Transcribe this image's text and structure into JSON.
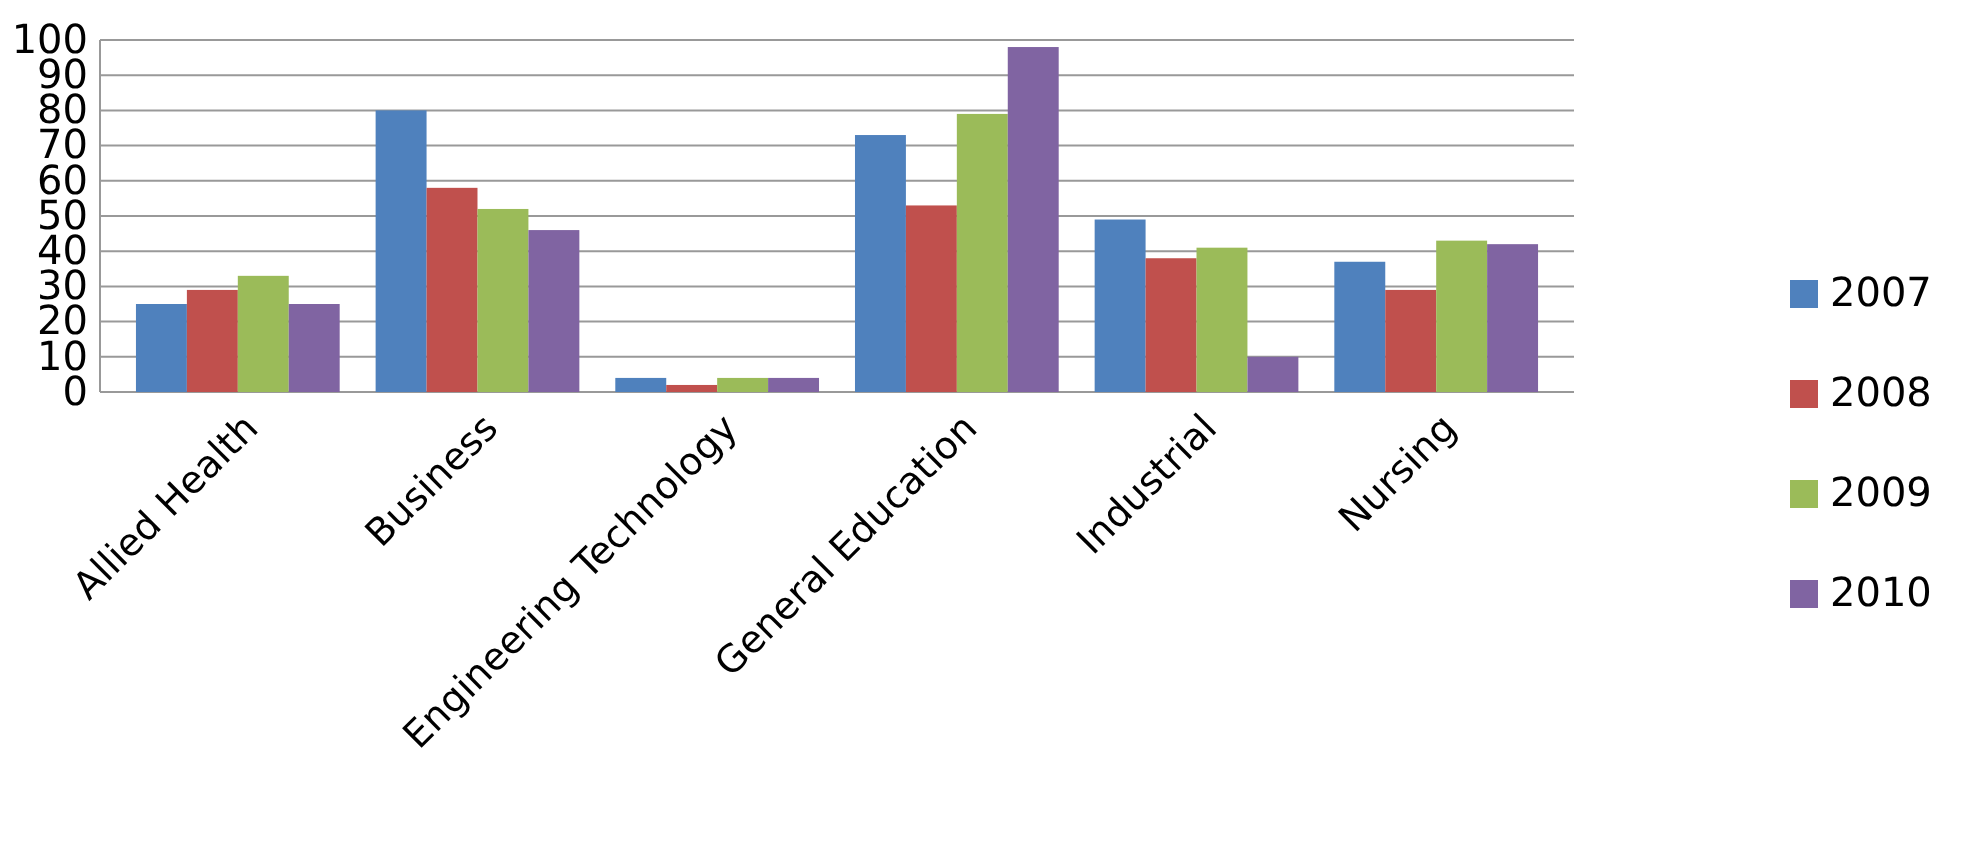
{
  "chart_data": {
    "type": "bar",
    "categories": [
      "Allied Health",
      "Business",
      "Engineering Technology",
      "General Education",
      "Industrial",
      "Nursing"
    ],
    "series": [
      {
        "name": "2007",
        "color": "#4f81bd",
        "values": [
          25,
          80,
          4,
          73,
          49,
          37
        ]
      },
      {
        "name": "2008",
        "color": "#c0504d",
        "values": [
          29,
          58,
          2,
          53,
          38,
          29
        ]
      },
      {
        "name": "2009",
        "color": "#9bbb59",
        "values": [
          33,
          52,
          4,
          79,
          41,
          43
        ]
      },
      {
        "name": "2010",
        "color": "#8064a2",
        "values": [
          25,
          46,
          4,
          98,
          10,
          42
        ]
      }
    ],
    "ylim": [
      0,
      100
    ],
    "yticks": [
      0,
      10,
      20,
      30,
      40,
      50,
      60,
      70,
      80,
      90,
      100
    ],
    "grid": "y",
    "legend": "right"
  }
}
